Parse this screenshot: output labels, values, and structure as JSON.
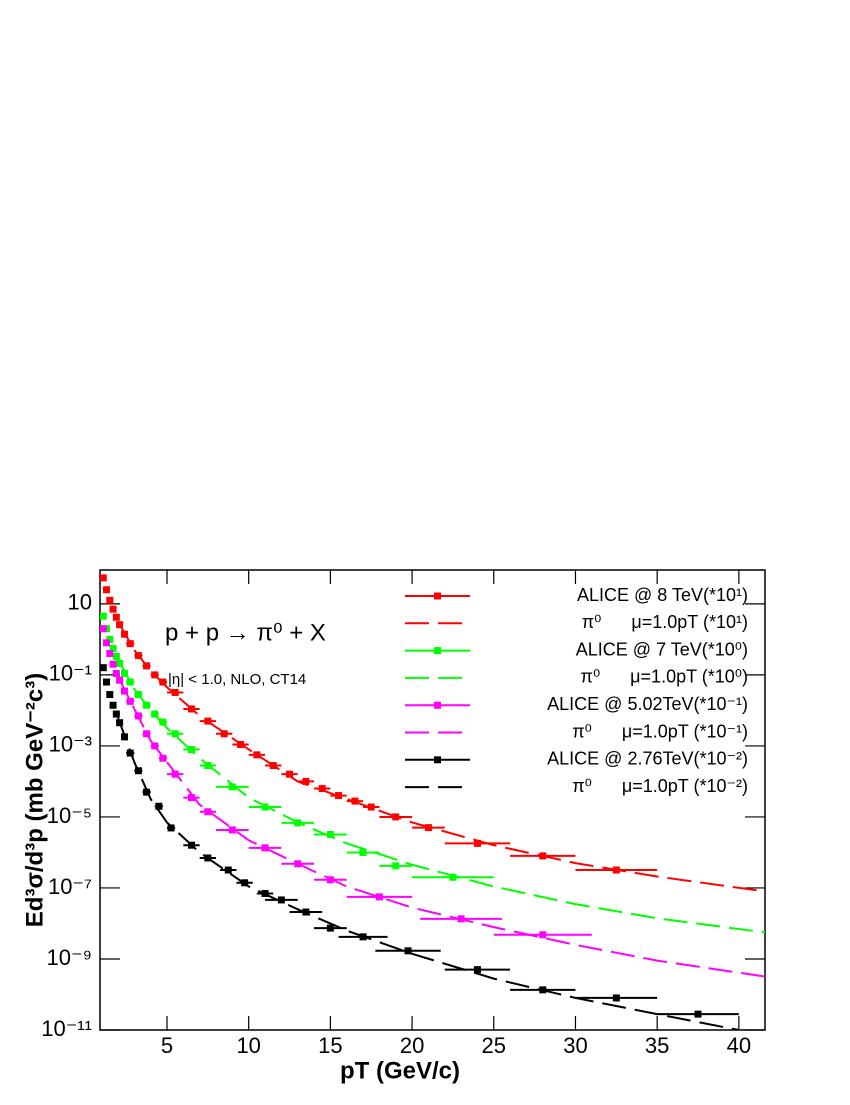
{
  "chart_data": {
    "type": "scatter",
    "annotations": [
      "p + p → π⁰ + X",
      "|η| < 1.0, NLO, CT14"
    ],
    "x_label": "pT (GeV/c)",
    "y_label": "Ed³σ/d³p (mb GeV⁻²c³)",
    "xlim": [
      0.9,
      41.6
    ],
    "xticks": [
      5,
      10,
      15,
      20,
      25,
      30,
      35,
      40
    ],
    "ylim": [
      1e-11,
      90
    ],
    "ylog": true,
    "yticks": [
      10,
      {
        "value": 0.1,
        "label": "10⁻¹"
      },
      {
        "value": 0.001,
        "label": "10⁻³"
      },
      {
        "value": 1e-05,
        "label": "10⁻⁵"
      },
      {
        "value": 1e-07,
        "label": "10⁻⁷"
      },
      {
        "value": 1e-09,
        "label": "10⁻⁹"
      },
      {
        "value": 1e-11,
        "label": "10⁻¹¹"
      }
    ],
    "grid": false,
    "legend": "top-right",
    "series": [
      {
        "name": "ALICE @ 8 TeV(*10¹)",
        "type": "scatter",
        "color": "#ff0000",
        "x": [
          1.1,
          1.3,
          1.5,
          1.7,
          1.9,
          2.1,
          2.4,
          2.75,
          3.25,
          3.75,
          4.25,
          4.75,
          5.5,
          6.5,
          7.5,
          8.5,
          9.5,
          10.5,
          11.5,
          12.5,
          13.5,
          14.5,
          15.5,
          16.5,
          17.5,
          19,
          21,
          24,
          28,
          32.5
        ],
        "values": [
          54,
          25,
          12.6,
          7.1,
          4.2,
          2.6,
          1.4,
          0.76,
          0.35,
          0.18,
          0.1,
          0.063,
          0.032,
          0.011,
          0.005,
          0.0022,
          0.0011,
          0.00056,
          0.00028,
          0.00016,
          0.0001,
          6.3e-05,
          4e-05,
          2.8e-05,
          1.9e-05,
          1e-05,
          5e-06,
          1.8e-06,
          8e-07,
          3.2e-07
        ],
        "xerr": [
          0.1,
          0.1,
          0.1,
          0.1,
          0.1,
          0.1,
          0.15,
          0.25,
          0.25,
          0.25,
          0.25,
          0.25,
          0.5,
          0.5,
          0.5,
          0.5,
          0.5,
          0.5,
          0.5,
          0.5,
          0.5,
          0.5,
          0.5,
          0.5,
          0.5,
          1,
          1,
          2,
          2,
          2.5
        ]
      },
      {
        "name": "π⁰      μ=1.0pT (*10¹)",
        "type": "line",
        "color": "#ff0000",
        "x": [
          2,
          3,
          4,
          5,
          7,
          10,
          13,
          16,
          20,
          25,
          30,
          35,
          41.6
        ],
        "values": [
          3.2,
          0.5,
          0.13,
          0.045,
          0.007,
          0.0008,
          0.0001,
          3.2e-05,
          7e-06,
          1.6e-06,
          5e-07,
          2.1e-07,
          8e-08
        ]
      },
      {
        "name": "ALICE @ 7 TeV(*10⁰)",
        "type": "scatter",
        "color": "#00ff00",
        "x": [
          1.1,
          1.3,
          1.5,
          1.7,
          1.9,
          2.1,
          2.4,
          2.75,
          3.25,
          3.75,
          4.25,
          4.75,
          5.5,
          6.5,
          7.5,
          9,
          11,
          13,
          15,
          17,
          19,
          22.5
        ],
        "values": [
          4.5,
          2,
          1,
          0.56,
          0.33,
          0.21,
          0.11,
          0.063,
          0.028,
          0.014,
          0.0079,
          0.0047,
          0.0022,
          0.00079,
          0.00028,
          7e-05,
          1.9e-05,
          6.8e-06,
          3.2e-06,
          1e-06,
          4.2e-07,
          2e-07
        ],
        "xerr": [
          0.1,
          0.1,
          0.1,
          0.1,
          0.1,
          0.1,
          0.15,
          0.25,
          0.25,
          0.25,
          0.25,
          0.25,
          0.5,
          0.5,
          0.5,
          1,
          1,
          1,
          1,
          1,
          1,
          2.5
        ]
      },
      {
        "name": "π⁰      μ=1.0pT (*10⁰)",
        "type": "line",
        "color": "#00ff00",
        "x": [
          2,
          3,
          4,
          5,
          7,
          10,
          13,
          16,
          20,
          25,
          30,
          35,
          41.6
        ],
        "values": [
          0.28,
          0.04,
          0.01,
          0.0032,
          0.00045,
          3.5e-05,
          7e-06,
          1.8e-06,
          4.5e-07,
          1.1e-07,
          3.5e-08,
          1.4e-08,
          5.6e-09
        ]
      },
      {
        "name": "ALICE @ 5.02TeV(*10⁻¹)",
        "type": "scatter",
        "color": "#ff00ff",
        "x": [
          1.1,
          1.3,
          1.5,
          1.7,
          1.9,
          2.1,
          2.4,
          2.75,
          3.25,
          3.75,
          4.25,
          4.75,
          5.5,
          6.5,
          7.5,
          9,
          11,
          13,
          15,
          18,
          23,
          28
        ],
        "values": [
          2,
          0.8,
          0.4,
          0.2,
          0.11,
          0.071,
          0.035,
          0.018,
          0.007,
          0.0022,
          0.001,
          0.00045,
          0.00016,
          3.5e-05,
          1.4e-05,
          4.3e-06,
          1.35e-06,
          4.8e-07,
          1.7e-07,
          5.6e-08,
          1.35e-08,
          4.8e-09
        ],
        "xerr": [
          0.1,
          0.1,
          0.1,
          0.1,
          0.1,
          0.1,
          0.15,
          0.25,
          0.25,
          0.25,
          0.25,
          0.25,
          0.5,
          0.5,
          0.5,
          1,
          1,
          1,
          1,
          2,
          2.5,
          3
        ]
      },
      {
        "name": "π⁰      μ=1.0pT (*10⁻¹)",
        "type": "line",
        "color": "#ff00ff",
        "x": [
          2,
          3,
          4,
          5,
          7,
          10,
          13,
          16,
          20,
          25,
          30,
          35,
          41.6
        ],
        "values": [
          0.09,
          0.011,
          0.0014,
          0.00035,
          2.2e-05,
          2.2e-06,
          4.8e-07,
          1.1e-07,
          2.8e-08,
          7.9e-09,
          2.5e-09,
          9e-10,
          3.2e-10
        ]
      },
      {
        "name": "ALICE @ 2.76TeV(*10⁻²)",
        "type": "scatter",
        "color": "#000000",
        "x": [
          1.1,
          1.3,
          1.5,
          1.7,
          1.9,
          2.1,
          2.4,
          2.75,
          3.25,
          3.75,
          4.5,
          5.25,
          6.5,
          7.5,
          8.75,
          9.75,
          11,
          12,
          13.5,
          15,
          17,
          19.75,
          24,
          28,
          32.5,
          37.5
        ],
        "values": [
          0.16,
          0.063,
          0.028,
          0.014,
          0.0079,
          0.0045,
          0.0018,
          0.00063,
          0.0002,
          5e-05,
          2e-05,
          4.9e-06,
          1.6e-06,
          7e-07,
          3.2e-07,
          1.4e-07,
          7e-08,
          4.6e-08,
          2.1e-08,
          7.4e-09,
          4.2e-09,
          1.7e-09,
          5e-10,
          1.35e-10,
          8e-11,
          2.8e-11
        ],
        "xerr": [
          0.1,
          0.1,
          0.1,
          0.1,
          0.1,
          0.1,
          0.15,
          0.25,
          0.25,
          0.25,
          0.25,
          0.25,
          0.5,
          0.5,
          0.5,
          0.5,
          0.5,
          1,
          1,
          1,
          1.5,
          2,
          2,
          2,
          2.5,
          2.5
        ]
      },
      {
        "name": "π⁰      μ=1.0pT (*10⁻²)",
        "type": "line",
        "color": "#000000",
        "x": [
          2,
          3,
          4,
          5,
          7,
          10,
          13,
          16,
          20,
          25,
          30,
          35,
          40
        ],
        "values": [
          0.0063,
          0.00035,
          3.2e-05,
          7e-06,
          1e-06,
          1.1e-07,
          2.5e-08,
          6.3e-09,
          1.4e-09,
          2.8e-10,
          8e-11,
          2.8e-11,
          1e-11
        ]
      }
    ]
  }
}
